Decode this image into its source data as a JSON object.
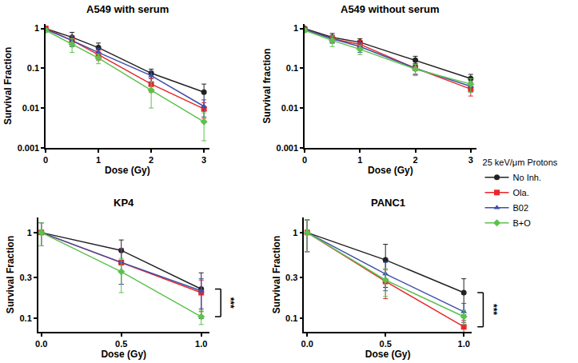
{
  "legend_title": "25 keV/μm Protons",
  "chart_data": [
    {
      "type": "scatter",
      "title": "A549 with serum",
      "x_label": "Dose (Gy)",
      "y_label": "Survival Fraction",
      "log": "y",
      "xlim": [
        0,
        3.1
      ],
      "ylim": [
        0.001,
        1.3
      ],
      "xticks": [
        0,
        1,
        2,
        3
      ],
      "yticks": [
        0.001,
        0.01,
        0.1,
        1
      ],
      "x": [
        0,
        0.5,
        1,
        2,
        3
      ],
      "series": [
        {
          "name": "No Inh.",
          "color": "#222222",
          "marker": "circle",
          "values": [
            1,
            0.6,
            0.33,
            0.075,
            0.025
          ],
          "error": [
            0.05,
            0.2,
            0.1,
            0.02,
            0.015
          ]
        },
        {
          "name": "Ola.",
          "color": "#e8272b",
          "marker": "square",
          "values": [
            1,
            0.5,
            0.22,
            0.04,
            0.0095
          ],
          "error": [
            0.05,
            0.15,
            0.06,
            0.015,
            0.004
          ]
        },
        {
          "name": "B02",
          "color": "#3d4fa8",
          "marker": "triangle-up",
          "values": [
            0.95,
            0.5,
            0.25,
            0.065,
            0.011
          ],
          "error": [
            0.05,
            0.15,
            0.07,
            0.02,
            0.005
          ]
        },
        {
          "name": "B+O",
          "color": "#5cc24e",
          "marker": "diamond",
          "values": [
            0.9,
            0.4,
            0.18,
            0.028,
            0.0045
          ],
          "error": [
            0.1,
            0.15,
            0.05,
            0.018,
            0.003
          ]
        }
      ]
    },
    {
      "type": "scatter",
      "title": "A549 without serum",
      "x_label": "Dose (Gy)",
      "y_label": "Survival fraction",
      "log": "y",
      "xlim": [
        0,
        3.1
      ],
      "ylim": [
        0.001,
        1.3
      ],
      "xticks": [
        0,
        1,
        2,
        3
      ],
      "yticks": [
        0.001,
        0.01,
        0.1,
        1
      ],
      "x": [
        0,
        0.5,
        1,
        2,
        3
      ],
      "series": [
        {
          "name": "No Inh.",
          "color": "#222222",
          "marker": "circle",
          "values": [
            1,
            0.6,
            0.45,
            0.16,
            0.055
          ],
          "error": [
            0.05,
            0.15,
            0.1,
            0.04,
            0.015
          ]
        },
        {
          "name": "Ola.",
          "color": "#e8272b",
          "marker": "square",
          "values": [
            0.95,
            0.55,
            0.4,
            0.1,
            0.03
          ],
          "error": [
            0.05,
            0.12,
            0.1,
            0.03,
            0.01
          ]
        },
        {
          "name": "B02",
          "color": "#3d4fa8",
          "marker": "triangle-up",
          "values": [
            0.95,
            0.55,
            0.35,
            0.1,
            0.035
          ],
          "error": [
            0.05,
            0.12,
            0.1,
            0.03,
            0.01
          ]
        },
        {
          "name": "B+O",
          "color": "#5cc24e",
          "marker": "diamond",
          "values": [
            0.9,
            0.5,
            0.3,
            0.095,
            0.04
          ],
          "error": [
            0.1,
            0.15,
            0.08,
            0.03,
            0.015
          ]
        }
      ]
    },
    {
      "type": "scatter",
      "title": "KP4",
      "x_label": "Dose (Gy)",
      "y_label": "Survival Fraction",
      "log": "y",
      "xlim": [
        -0.02,
        1.05
      ],
      "ylim": [
        0.07,
        1.5
      ],
      "xticks": [
        {
          "value": 0,
          "label": "0.0"
        },
        {
          "value": 0.5,
          "label": "0.5"
        },
        {
          "value": 1,
          "label": "1.0"
        }
      ],
      "yticks": [
        0.1,
        0.3,
        1
      ],
      "x": [
        0,
        0.5,
        1
      ],
      "series": [
        {
          "name": "No Inh.",
          "color": "#222222",
          "marker": "circle",
          "values": [
            1,
            0.62,
            0.22
          ],
          "error": [
            0.3,
            0.2,
            0.12
          ]
        },
        {
          "name": "Ola.",
          "color": "#e8272b",
          "marker": "square",
          "values": [
            1,
            0.45,
            0.2
          ],
          "error": [
            0.3,
            0.2,
            0.08
          ]
        },
        {
          "name": "B02",
          "color": "#3d4fa8",
          "marker": "triangle-up",
          "values": [
            1,
            0.45,
            0.21
          ],
          "error": [
            0.3,
            0.2,
            0.08
          ]
        },
        {
          "name": "B+O",
          "color": "#5cc24e",
          "marker": "diamond",
          "values": [
            1,
            0.35,
            0.105
          ],
          "error": [
            0.3,
            0.15,
            0.02
          ]
        }
      ],
      "annotations": [
        {
          "text": "***",
          "x": 1,
          "between": [
            "No Inh.",
            "B+O"
          ]
        }
      ]
    },
    {
      "type": "scatter",
      "title": "PANC1",
      "x_label": "Dose (Gy)",
      "y_label": "Survival Fraction",
      "log": "y",
      "xlim": [
        -0.02,
        1.05
      ],
      "ylim": [
        0.07,
        1.5
      ],
      "xticks": [
        {
          "value": 0,
          "label": "0.0"
        },
        {
          "value": 0.5,
          "label": "0.5"
        },
        {
          "value": 1,
          "label": "1.0"
        }
      ],
      "yticks": [
        0.1,
        0.3,
        1
      ],
      "x": [
        0,
        0.5,
        1
      ],
      "legend": "right",
      "series": [
        {
          "name": "No Inh.",
          "color": "#222222",
          "marker": "circle",
          "values": [
            1,
            0.48,
            0.2
          ],
          "error": [
            0.4,
            0.25,
            0.09
          ]
        },
        {
          "name": "Ola.",
          "color": "#e8272b",
          "marker": "square",
          "values": [
            1,
            0.27,
            0.08
          ],
          "error": [
            0.4,
            0.1,
            0.015
          ]
        },
        {
          "name": "B02",
          "color": "#3d4fa8",
          "marker": "triangle-up",
          "values": [
            1,
            0.33,
            0.12
          ],
          "error": [
            0.4,
            0.12,
            0.03
          ]
        },
        {
          "name": "B+O",
          "color": "#5cc24e",
          "marker": "diamond",
          "values": [
            1,
            0.28,
            0.105
          ],
          "error": [
            0.4,
            0.1,
            0.02
          ]
        }
      ],
      "annotations": [
        {
          "text": "***",
          "x": 1,
          "between": [
            "No Inh.",
            "Ola."
          ]
        }
      ]
    }
  ]
}
